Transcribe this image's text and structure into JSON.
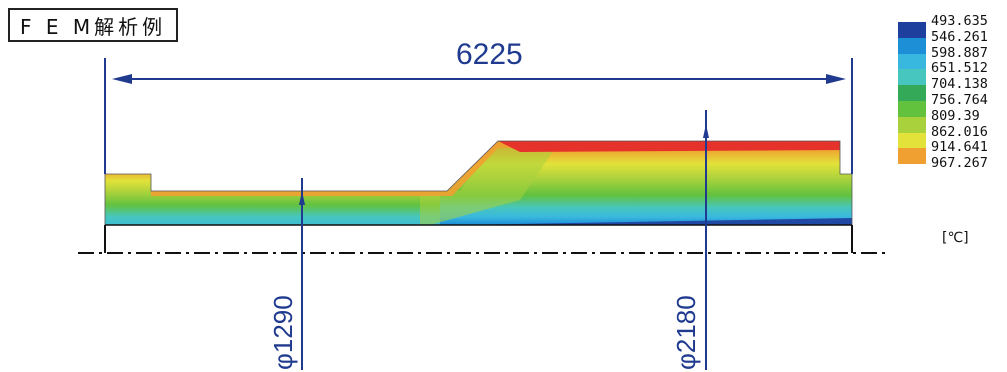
{
  "title": "F E M解析例",
  "dimensions": {
    "length": "6225",
    "diameter_small": "φ1290",
    "diameter_large": "φ2180"
  },
  "legend": {
    "values": [
      "493.635",
      "546.261",
      "598.887",
      "651.512",
      "704.138",
      "756.764",
      "809.39",
      "862.016",
      "914.641",
      "967.267"
    ],
    "colors": [
      "#1f3f9f",
      "#1d8fd6",
      "#39b8df",
      "#46c6bf",
      "#34a957",
      "#62c23e",
      "#a8d13c",
      "#e2e23a",
      "#f0a030",
      "#e5322b"
    ],
    "unit": "[℃]"
  }
}
